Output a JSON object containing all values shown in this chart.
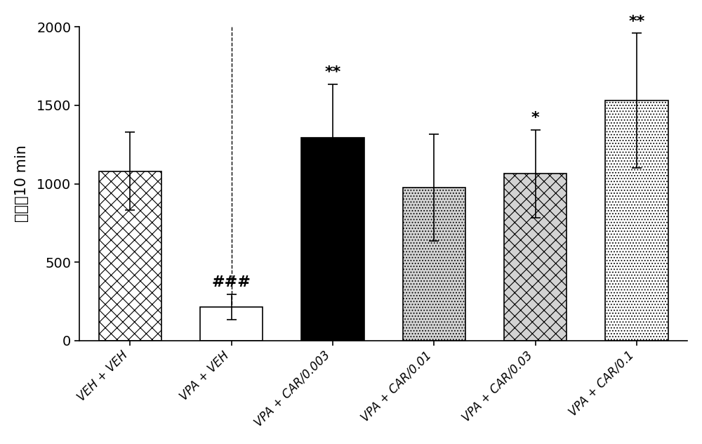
{
  "categories": [
    "VEH + VEH",
    "VPA + VEH",
    "VPA + CAR/0.003",
    "VPA + CAR/0.01",
    "VPA + CAR/0.03",
    "VPA + CAR/0.1"
  ],
  "values": [
    1080,
    215,
    1295,
    975,
    1065,
    1530
  ],
  "errors": [
    250,
    80,
    340,
    340,
    280,
    430
  ],
  "bar_colors": [
    "white",
    "white",
    "black",
    "white",
    "white",
    "white"
  ],
  "bar_edgecolors": [
    "black",
    "black",
    "black",
    "black",
    "black",
    "black"
  ],
  "annotations": [
    "",
    "###",
    "**",
    "",
    "*",
    "**"
  ],
  "ylabel": "计数／10 min",
  "ylim": [
    0,
    2000
  ],
  "yticks": [
    0,
    500,
    1000,
    1500,
    2000
  ],
  "figsize": [
    10.0,
    6.32
  ],
  "dpi": 100,
  "background_color": "white"
}
